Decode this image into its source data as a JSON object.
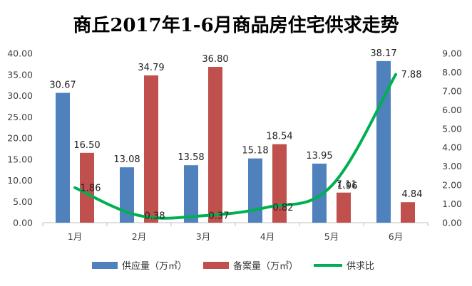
{
  "chart_data": {
    "type": "bar",
    "title": "商丘2017年1-6月商品房住宅供求走势",
    "categories": [
      "1月",
      "2月",
      "3月",
      "4月",
      "5月",
      "6月"
    ],
    "series": [
      {
        "name": "供应量（万㎡）",
        "type": "bar",
        "axis": "left",
        "color": "#4f81bd",
        "values": [
          30.67,
          13.08,
          13.58,
          15.18,
          13.95,
          38.17
        ],
        "labels": [
          "30.67",
          "13.08",
          "13.58",
          "15.18",
          "13.95",
          "38.17"
        ]
      },
      {
        "name": "备案量（万㎡）",
        "type": "bar",
        "axis": "left",
        "color": "#c0504d",
        "values": [
          16.5,
          34.79,
          36.8,
          18.54,
          7.11,
          4.84
        ],
        "labels": [
          "16.50",
          "34.79",
          "36.80",
          "18.54",
          "7.11",
          "4.84"
        ]
      },
      {
        "name": "供求比",
        "type": "line",
        "axis": "right",
        "color": "#00b050",
        "values": [
          1.86,
          0.38,
          0.37,
          0.82,
          1.96,
          7.88
        ],
        "labels": [
          "1.86",
          "0.38",
          "0.37",
          "0.82",
          "1.96",
          "7.88"
        ]
      }
    ],
    "y_left": {
      "min": 0,
      "max": 40,
      "step": 5,
      "tick_labels": [
        "0.00",
        "5.00",
        "10.00",
        "15.00",
        "20.00",
        "25.00",
        "30.00",
        "35.00",
        "40.00"
      ]
    },
    "y_right": {
      "min": 0,
      "max": 9,
      "step": 1,
      "tick_labels": [
        "0.00",
        "1.00",
        "2.00",
        "3.00",
        "4.00",
        "5.00",
        "6.00",
        "7.00",
        "8.00",
        "9.00"
      ]
    },
    "grid": false,
    "legend_position": "bottom"
  }
}
